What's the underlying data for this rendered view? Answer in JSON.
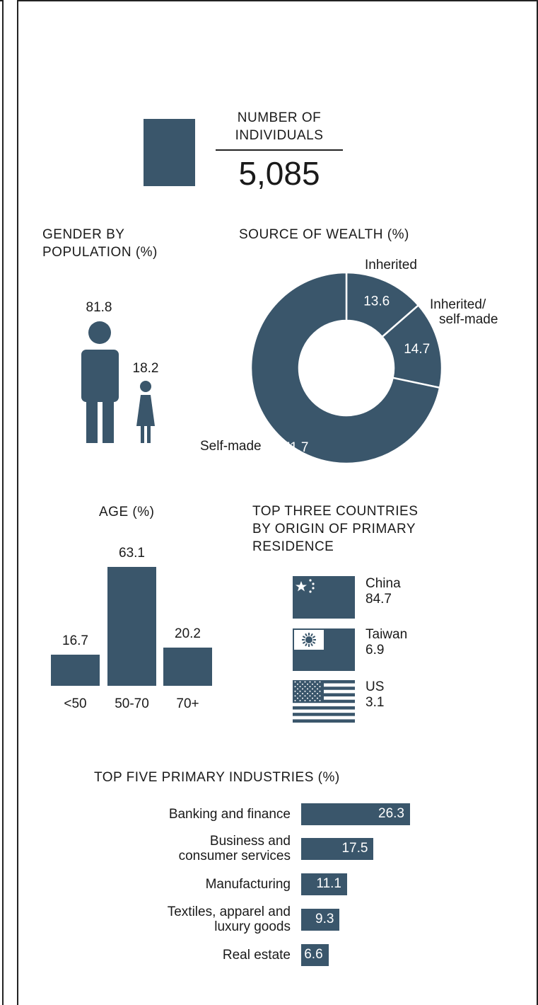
{
  "colors": {
    "accent": "#3a566b",
    "text": "#1a1a1a",
    "background": "#ffffff"
  },
  "summary": {
    "title": "NUMBER OF INDIVIDUALS",
    "title_line1": "NUMBER OF",
    "title_line2": "INDIVIDUALS",
    "value": "5,085"
  },
  "chart_data": [
    {
      "type": "pictogram",
      "title": "GENDER BY POPULATION (%)",
      "title_line1": "GENDER BY",
      "title_line2": "POPULATION (%)",
      "icons": [
        "man-icon",
        "woman-icon"
      ],
      "values": [
        81.8,
        18.2
      ],
      "value_labels": [
        "81.8",
        "18.2"
      ]
    },
    {
      "type": "pie",
      "title": "SOURCE OF WEALTH (%)",
      "categories": [
        "Inherited",
        "Inherited/ self-made",
        "Self-made"
      ],
      "label_inherited": "Inherited",
      "label_mixed_line1": "Inherited/",
      "label_mixed_line2": "self-made",
      "label_selfmade": "Self-made",
      "values": [
        13.6,
        14.7,
        71.7
      ],
      "value_labels": [
        "13.6",
        "14.7",
        "71.7"
      ],
      "donut": true
    },
    {
      "type": "bar",
      "title": "AGE (%)",
      "categories": [
        "<50",
        "50-70",
        "70+"
      ],
      "values": [
        16.7,
        63.1,
        20.2
      ],
      "value_labels": [
        "16.7",
        "63.1",
        "20.2"
      ]
    },
    {
      "type": "table",
      "title": "TOP THREE COUNTRIES BY ORIGIN OF PRIMARY RESIDENCE",
      "title_line1": "TOP THREE COUNTRIES",
      "title_line2": "BY ORIGIN OF PRIMARY",
      "title_line3": "RESIDENCE",
      "countries": [
        {
          "name": "China",
          "value": "84.7",
          "flag": "china-flag-icon"
        },
        {
          "name": "Taiwan",
          "value": "6.9",
          "flag": "taiwan-flag-icon"
        },
        {
          "name": "US",
          "value": "3.1",
          "flag": "us-flag-icon"
        }
      ]
    },
    {
      "type": "bar",
      "orientation": "horizontal",
      "title": "TOP FIVE PRIMARY INDUSTRIES (%)",
      "categories": [
        "Banking and finance",
        "Business and consumer services",
        "Manufacturing",
        "Textiles, apparel and luxury goods",
        "Real estate"
      ],
      "category_lines": [
        [
          "Banking and finance"
        ],
        [
          "Business and",
          "consumer services"
        ],
        [
          "Manufacturing"
        ],
        [
          "Textiles, apparel and",
          "luxury goods"
        ],
        [
          "Real estate"
        ]
      ],
      "values": [
        26.3,
        17.5,
        11.1,
        9.3,
        6.6
      ],
      "value_labels": [
        "26.3",
        "17.5",
        "11.1",
        "9.3",
        "6.6"
      ]
    }
  ]
}
